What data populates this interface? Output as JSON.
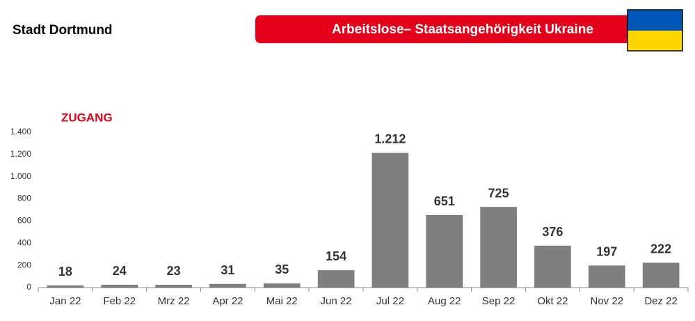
{
  "header": {
    "title": "Stadt Dortmund"
  },
  "chart_data": {
    "type": "bar",
    "title": "Arbeitslose– Staatsangehörigkeit Ukraine",
    "subtitle": "ZUGANG",
    "categories": [
      "Jan 22",
      "Feb 22",
      "Mrz 22",
      "Apr 22",
      "Mai 22",
      "Jun 22",
      "Jul 22",
      "Aug 22",
      "Sep 22",
      "Okt 22",
      "Nov 22",
      "Dez 22"
    ],
    "values": [
      18,
      24,
      23,
      31,
      35,
      154,
      1212,
      651,
      725,
      376,
      197,
      222
    ],
    "value_labels": [
      "18",
      "24",
      "23",
      "31",
      "35",
      "154",
      "1.212",
      "651",
      "725",
      "376",
      "197",
      "222"
    ],
    "color": "#7f7f7f",
    "ylim": [
      0,
      1400
    ],
    "yticks": [
      0,
      200,
      400,
      600,
      800,
      {
        "value": 1000,
        "label": "1.000"
      },
      {
        "value": 1200,
        "label": "1.200"
      },
      {
        "value": 1400,
        "label": "1.400"
      }
    ],
    "grid": false
  }
}
